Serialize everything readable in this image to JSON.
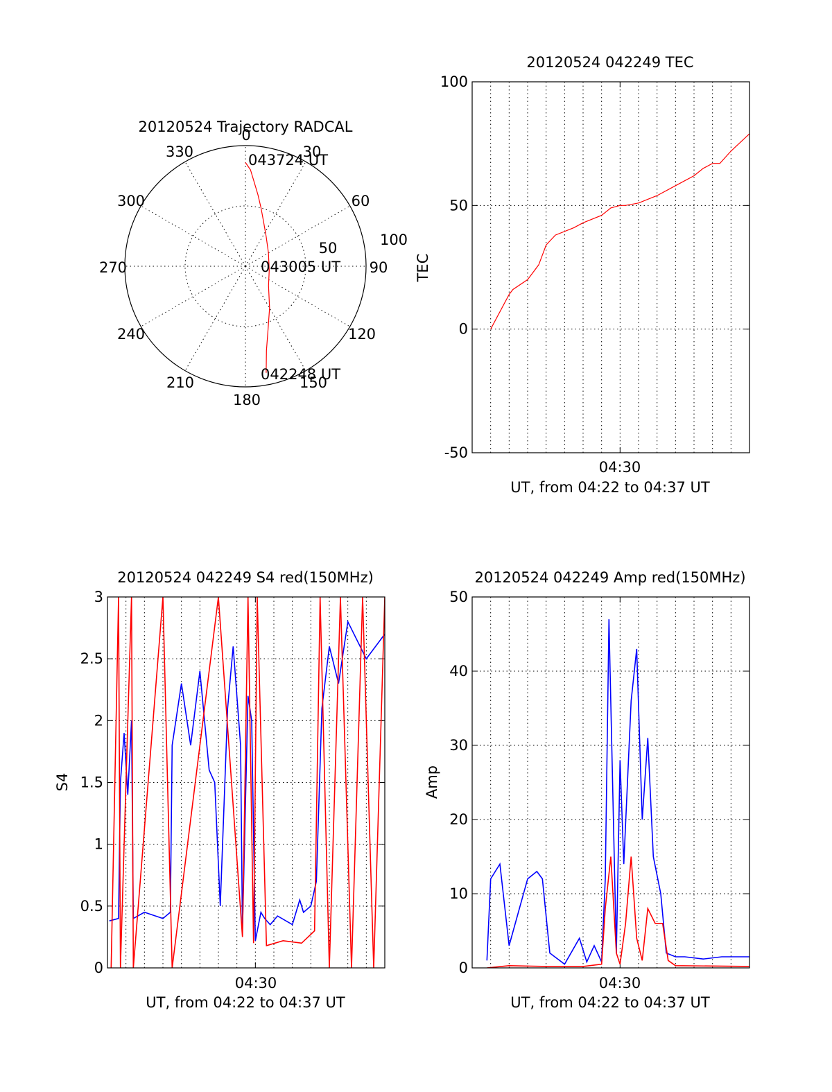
{
  "colors": {
    "red": "#ff0000",
    "blue": "#0000ff",
    "axis": "#000000",
    "grid": "#000000"
  },
  "chart_data": [
    {
      "type": "polar",
      "title": "20120524 Trajectory RADCAL",
      "angle_labels": [
        "0",
        "30",
        "60",
        "90",
        "120",
        "150",
        "180",
        "210",
        "240",
        "270",
        "300",
        "330"
      ],
      "radial_labels": [
        "50",
        "100"
      ],
      "rlim": [
        0,
        100
      ],
      "grid": true,
      "series": [
        {
          "color": "#ff0000",
          "points": [
            [
              0,
              86
            ],
            [
              3,
              80
            ],
            [
              6,
              70
            ],
            [
              10,
              60
            ],
            [
              15,
              50
            ],
            [
              22,
              40
            ],
            [
              35,
              30
            ],
            [
              60,
              22
            ],
            [
              100,
              20
            ],
            [
              130,
              25
            ],
            [
              150,
              40
            ],
            [
              160,
              55
            ],
            [
              166,
              72
            ],
            [
              169,
              90
            ]
          ]
        }
      ],
      "annotations": [
        {
          "text": "043724 UT",
          "az": 0,
          "r": 86
        },
        {
          "text": "043005 UT",
          "az": 100,
          "r": 20
        },
        {
          "text": "042248 UT",
          "az": 169,
          "r": 90
        }
      ]
    },
    {
      "type": "line",
      "title": "20120524 042249 TEC",
      "ylabel": "TEC",
      "xlabel": "UT, from 04:22 to 04:37 UT",
      "xlim": [
        0,
        15
      ],
      "ylim": [
        -50,
        100
      ],
      "yticks": [
        -50,
        0,
        50,
        100
      ],
      "xtick": {
        "value": 8,
        "label": "04:30"
      },
      "grid": true,
      "series": [
        {
          "color": "#ff0000",
          "x": [
            1,
            2,
            2.2,
            3,
            3.6,
            4,
            4.5,
            5.5,
            6,
            7,
            7.5,
            8,
            8.3,
            9,
            10,
            11,
            12,
            12.5,
            13,
            13.4,
            14,
            15
          ],
          "y": [
            0,
            14,
            16,
            20,
            26,
            34,
            38,
            41,
            43,
            46,
            49,
            50,
            50,
            51,
            54,
            58,
            62,
            65,
            67,
            67,
            72,
            79
          ]
        }
      ]
    },
    {
      "type": "line",
      "title": "20120524 042249 S4 red(150MHz)",
      "ylabel": "S4",
      "xlabel": "UT, from 04:22 to 04:37 UT",
      "xlim": [
        0,
        15
      ],
      "ylim": [
        0,
        3
      ],
      "yticks": [
        0,
        0.5,
        1,
        1.5,
        2,
        2.5,
        3
      ],
      "ytick_labels": [
        "0",
        "0.5",
        "1",
        "1.5",
        "2",
        "2.5",
        "3"
      ],
      "xtick": {
        "value": 8,
        "label": "04:30"
      },
      "grid": true,
      "series": [
        {
          "color": "#0000ff",
          "x": [
            0.1,
            0.6,
            0.7,
            0.9,
            1.1,
            1.3,
            1.4,
            2.0,
            3.0,
            3.4,
            3.5,
            4.0,
            4.5,
            5.0,
            5.5,
            5.8,
            6.1,
            6.5,
            6.8,
            7.2,
            7.3,
            7.6,
            7.8,
            8.0,
            8.3,
            8.5,
            8.8,
            9.2,
            10.0,
            10.4,
            10.6,
            11.0,
            11.3,
            11.6,
            12.0,
            12.5,
            13.0,
            14.0,
            15.0
          ],
          "y": [
            0.38,
            0.4,
            1.5,
            1.9,
            1.4,
            2.0,
            0.4,
            0.45,
            0.4,
            0.45,
            1.8,
            2.3,
            1.8,
            2.4,
            1.6,
            1.5,
            0.5,
            2.1,
            2.6,
            1.8,
            0.3,
            2.2,
            2.0,
            0.22,
            0.45,
            0.4,
            0.35,
            0.42,
            0.35,
            0.55,
            0.45,
            0.5,
            0.7,
            2.1,
            2.6,
            2.3,
            2.8,
            2.5,
            2.7
          ]
        },
        {
          "color": "#ff0000",
          "x": [
            0.2,
            0.6,
            0.7,
            1.3,
            1.4,
            3.0,
            3.5,
            6.0,
            7.3,
            7.6,
            7.9,
            8.1,
            8.6,
            9.5,
            10.5,
            11.2,
            11.5,
            12.0,
            12.6,
            13.2,
            13.8,
            14.4,
            15.0
          ],
          "y": [
            0,
            3,
            0,
            3,
            0,
            3,
            0,
            3,
            0.25,
            3,
            0.2,
            3,
            0.18,
            0.22,
            0.2,
            0.3,
            3,
            0,
            3,
            0,
            3,
            0,
            3
          ]
        }
      ]
    },
    {
      "type": "line",
      "title": "20120524 042249 Amp red(150MHz)",
      "ylabel": "Amp",
      "xlabel": "UT, from 04:22 to 04:37 UT",
      "xlim": [
        0,
        15
      ],
      "ylim": [
        0,
        50
      ],
      "yticks": [
        0,
        10,
        20,
        30,
        40,
        50
      ],
      "xtick": {
        "value": 8,
        "label": "04:30"
      },
      "grid": true,
      "series": [
        {
          "color": "#0000ff",
          "x": [
            0.8,
            1.0,
            1.5,
            2.0,
            3.0,
            3.5,
            3.8,
            4.2,
            5.0,
            5.8,
            6.2,
            6.6,
            7.0,
            7.2,
            7.4,
            7.8,
            8.0,
            8.2,
            8.6,
            8.9,
            9.2,
            9.5,
            9.8,
            10.2,
            10.5,
            11.0,
            11.5,
            12.5,
            13.5,
            15.0
          ],
          "y": [
            1,
            12,
            14,
            3,
            12,
            13,
            12,
            2,
            0.5,
            4,
            0.8,
            3,
            0.8,
            12,
            47,
            2,
            28,
            14,
            36,
            43,
            20,
            31,
            15,
            10,
            2,
            1.5,
            1.5,
            1.2,
            1.5,
            1.5
          ]
        },
        {
          "color": "#ff0000",
          "x": [
            0.8,
            2.0,
            4.0,
            6.0,
            7.0,
            7.2,
            7.5,
            7.8,
            8.0,
            8.3,
            8.6,
            8.9,
            9.2,
            9.5,
            9.9,
            10.3,
            10.6,
            11.0,
            15.0
          ],
          "y": [
            0,
            0.3,
            0.2,
            0.2,
            0.5,
            8,
            15,
            2,
            0.5,
            6,
            15,
            4,
            1,
            8,
            6,
            6,
            1,
            0.3,
            0.2
          ]
        }
      ]
    }
  ]
}
